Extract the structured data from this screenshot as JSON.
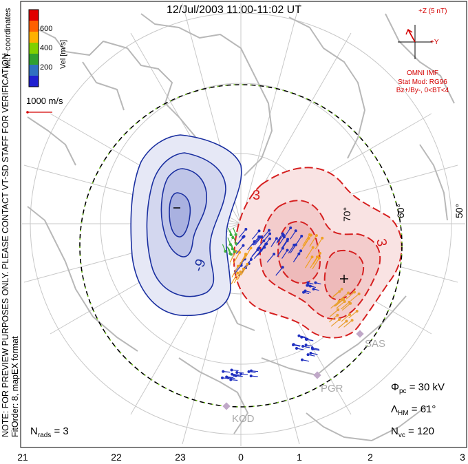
{
  "title": "12/Jul/2003 11:00-11:02 UT",
  "colorbar": {
    "ticks": [
      "600",
      "400",
      "200"
    ],
    "label": "Vel [m/s]",
    "colors": [
      "#e00000",
      "#ff6000",
      "#ffb000",
      "#80d000",
      "#30a030",
      "#3070c0",
      "#2020d0"
    ]
  },
  "coordinates_label": "MLT coordinates",
  "reference_vector": "1000 m/s",
  "imf": {
    "bz_label": "+Z (5 nT)",
    "by_label": "+Y",
    "source": "OMNI IMF",
    "model": "Stat Mod: RG96",
    "condition": "Bz+/By-, 0<BT<4",
    "clock_angle_deg": -30
  },
  "note": "NOTE: FOR PREVIEW PURPOSES ONLY. PLEASE CONTACT VT-SD STAFF FOR VERIFICATION.",
  "fit_info": "FitOrder: 8, mapEX format",
  "latitude_labels": [
    "50°",
    "60°",
    "70°"
  ],
  "contour_labels": [
    "-9",
    "3",
    "3"
  ],
  "extrema": {
    "min": "–",
    "max": "+"
  },
  "radars": [
    "SAS",
    "PGR",
    "KOD"
  ],
  "stats": {
    "phi_pc": {
      "symbol": "Φ",
      "sub": "pc",
      "value": "= 30 kV"
    },
    "lambda_hm": {
      "symbol": "Λ",
      "sub": "HM",
      "value": "= 61°"
    },
    "n_vc": {
      "symbol": "N",
      "sub": "vc",
      "value": "= 120"
    },
    "n_rads": {
      "symbol": "N",
      "sub": "rads",
      "value": "= 3"
    }
  },
  "mlt_labels": [
    "21",
    "22",
    "23",
    "0",
    "1",
    "2",
    "3"
  ],
  "colors": {
    "negative_cell": "#1a2fa0",
    "positive_cell": "#d62020",
    "coastline": "#b8b8b8",
    "grid": "#c8c8c8"
  }
}
